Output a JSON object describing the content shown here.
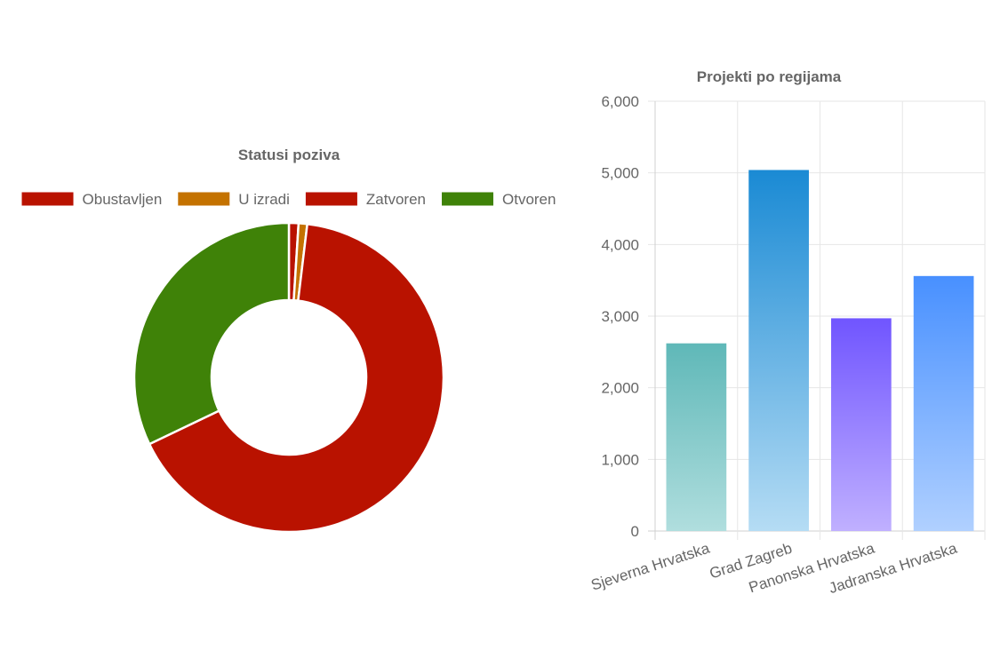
{
  "chart_data": [
    {
      "type": "pie",
      "title": "Statusi poziva",
      "legend_position": "top",
      "categories": [
        "Obustavljen",
        "U izradi",
        "Zatvoren",
        "Otvoren"
      ],
      "values": [
        10,
        9,
        660,
        321
      ],
      "colors": [
        "#b91200",
        "#c47200",
        "#b91200",
        "#3f8208"
      ],
      "cutout": 0.5
    },
    {
      "type": "bar",
      "title": "Projekti po regijama",
      "xlabel": "",
      "ylabel": "",
      "categories": [
        "Sjeverna Hrvatska",
        "Grad Zagreb",
        "Panonska Hrvatska",
        "Jadranska Hrvatska"
      ],
      "values": [
        2620,
        5040,
        2970,
        3560
      ],
      "ylim": [
        0,
        6000
      ],
      "yticks": [
        "0",
        "1,000",
        "2,000",
        "3,000",
        "4,000",
        "5,000",
        "6,000"
      ],
      "grid": true,
      "colors_top": [
        "#5fb8b8",
        "#1a8ad4",
        "#7055ff",
        "#4890ff"
      ],
      "colors_bottom": [
        "#b0dede",
        "#b5dcf4",
        "#c0b0ff",
        "#b0d0ff"
      ]
    }
  ]
}
